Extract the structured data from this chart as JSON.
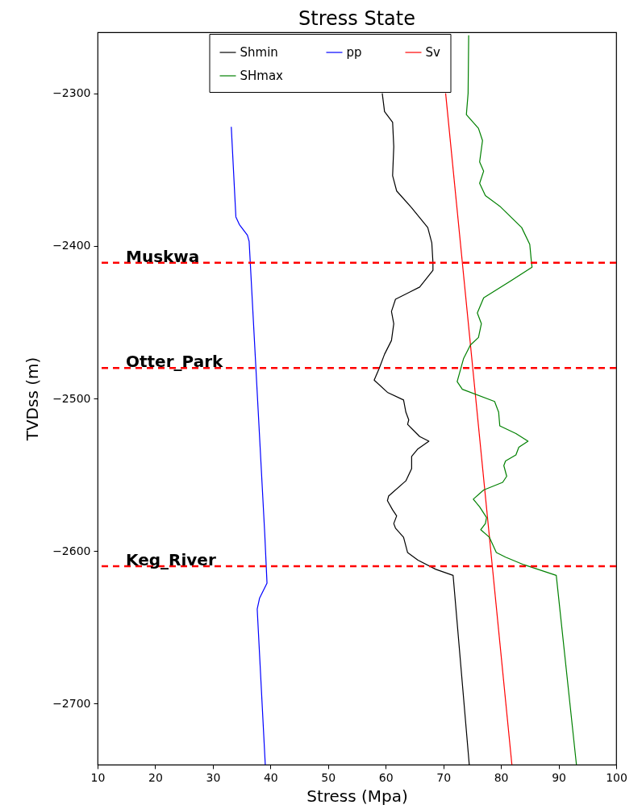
{
  "chart_data": {
    "type": "line",
    "title": "Stress State",
    "xlabel": "Stress (Mpa)",
    "ylabel": "TVDss (m)",
    "xlim": [
      10,
      100
    ],
    "xticks": [
      10,
      20,
      30,
      40,
      50,
      60,
      70,
      80,
      90,
      100
    ],
    "ylim": [
      -2740,
      -2260
    ],
    "yticks": [
      -2700,
      -2600,
      -2500,
      -2400,
      -2300
    ],
    "grid": false,
    "legend": "top",
    "marker": "none",
    "line_style": "solid",
    "series": [
      {
        "name": "Shmin",
        "color": "#000000",
        "x": [
          59.4,
          59.8,
          61.2,
          61.4,
          61.2,
          61.9,
          64.5,
          67.3,
          68.0,
          68.2,
          68.2,
          65.9,
          61.7,
          61.0,
          61.4,
          61.0,
          59.8,
          58.9,
          58.0,
          60.3,
          63.1,
          63.5,
          64.0,
          63.8,
          65.9,
          67.5,
          65.6,
          64.5,
          64.5,
          63.5,
          60.5,
          60.3,
          61.2,
          61.9,
          61.4,
          61.7,
          63.1,
          63.8,
          65.6,
          68.7,
          71.7,
          74.5
        ],
        "values": [
          -2300,
          -2312,
          -2319,
          -2335,
          -2354,
          -2364,
          -2375,
          -2388,
          -2398,
          -2411,
          -2416,
          -2427,
          -2435,
          -2443,
          -2451,
          -2462,
          -2471,
          -2480,
          -2488,
          -2496,
          -2501,
          -2509,
          -2514,
          -2517,
          -2525,
          -2528,
          -2533,
          -2538,
          -2546,
          -2554,
          -2564,
          -2567,
          -2573,
          -2577,
          -2582,
          -2585,
          -2591,
          -2601,
          -2606,
          -2612,
          -2616,
          -2740
        ]
      },
      {
        "name": "Sv",
        "color": "#ff0000",
        "x": [
          70.4,
          81.9
        ],
        "values": [
          -2300,
          -2740
        ]
      },
      {
        "name": "pp",
        "color": "#0000ff",
        "x": [
          33.2,
          34.0,
          34.6,
          36.0,
          36.3,
          39.0,
          39.4,
          38.1,
          37.7,
          39.1
        ],
        "values": [
          -2322,
          -2381,
          -2386,
          -2393,
          -2397,
          -2588,
          -2621,
          -2631,
          -2638,
          -2740
        ]
      },
      {
        "name": "SHmax",
        "color": "#008000",
        "x": [
          74.4,
          74.3,
          74.0,
          76.1,
          76.8,
          76.3,
          77.0,
          76.3,
          77.3,
          79.8,
          83.6,
          85.0,
          85.3,
          85.4,
          81.7,
          77.0,
          75.9,
          76.6,
          76.1,
          74.7,
          73.5,
          72.4,
          73.3,
          78.9,
          79.6,
          79.8,
          82.6,
          84.7,
          83.1,
          82.6,
          80.8,
          80.5,
          81.0,
          80.3,
          77.0,
          75.2,
          76.3,
          77.5,
          77.3,
          76.5,
          78.0,
          79.2,
          80.8,
          84.0,
          89.6,
          93.1
        ],
        "values": [
          -2262,
          -2300,
          -2314,
          -2323,
          -2331,
          -2345,
          -2351,
          -2359,
          -2367,
          -2374,
          -2388,
          -2399,
          -2411,
          -2414,
          -2423,
          -2434,
          -2444,
          -2451,
          -2460,
          -2465,
          -2474,
          -2489,
          -2494,
          -2502,
          -2509,
          -2518,
          -2523,
          -2528,
          -2532,
          -2537,
          -2541,
          -2544,
          -2551,
          -2555,
          -2560,
          -2566,
          -2571,
          -2578,
          -2582,
          -2586,
          -2591,
          -2601,
          -2604,
          -2609,
          -2616,
          -2740
        ]
      }
    ],
    "ref_lines": [
      {
        "axis": "y",
        "value": -2411,
        "label": "Muskwa",
        "color": "#ff0000",
        "line_style": "dashed"
      },
      {
        "axis": "y",
        "value": -2480,
        "label": "Otter_Park",
        "color": "#ff0000",
        "line_style": "dashed"
      },
      {
        "axis": "y",
        "value": -2610,
        "label": "Keg_River",
        "color": "#ff0000",
        "line_style": "dashed"
      }
    ]
  }
}
